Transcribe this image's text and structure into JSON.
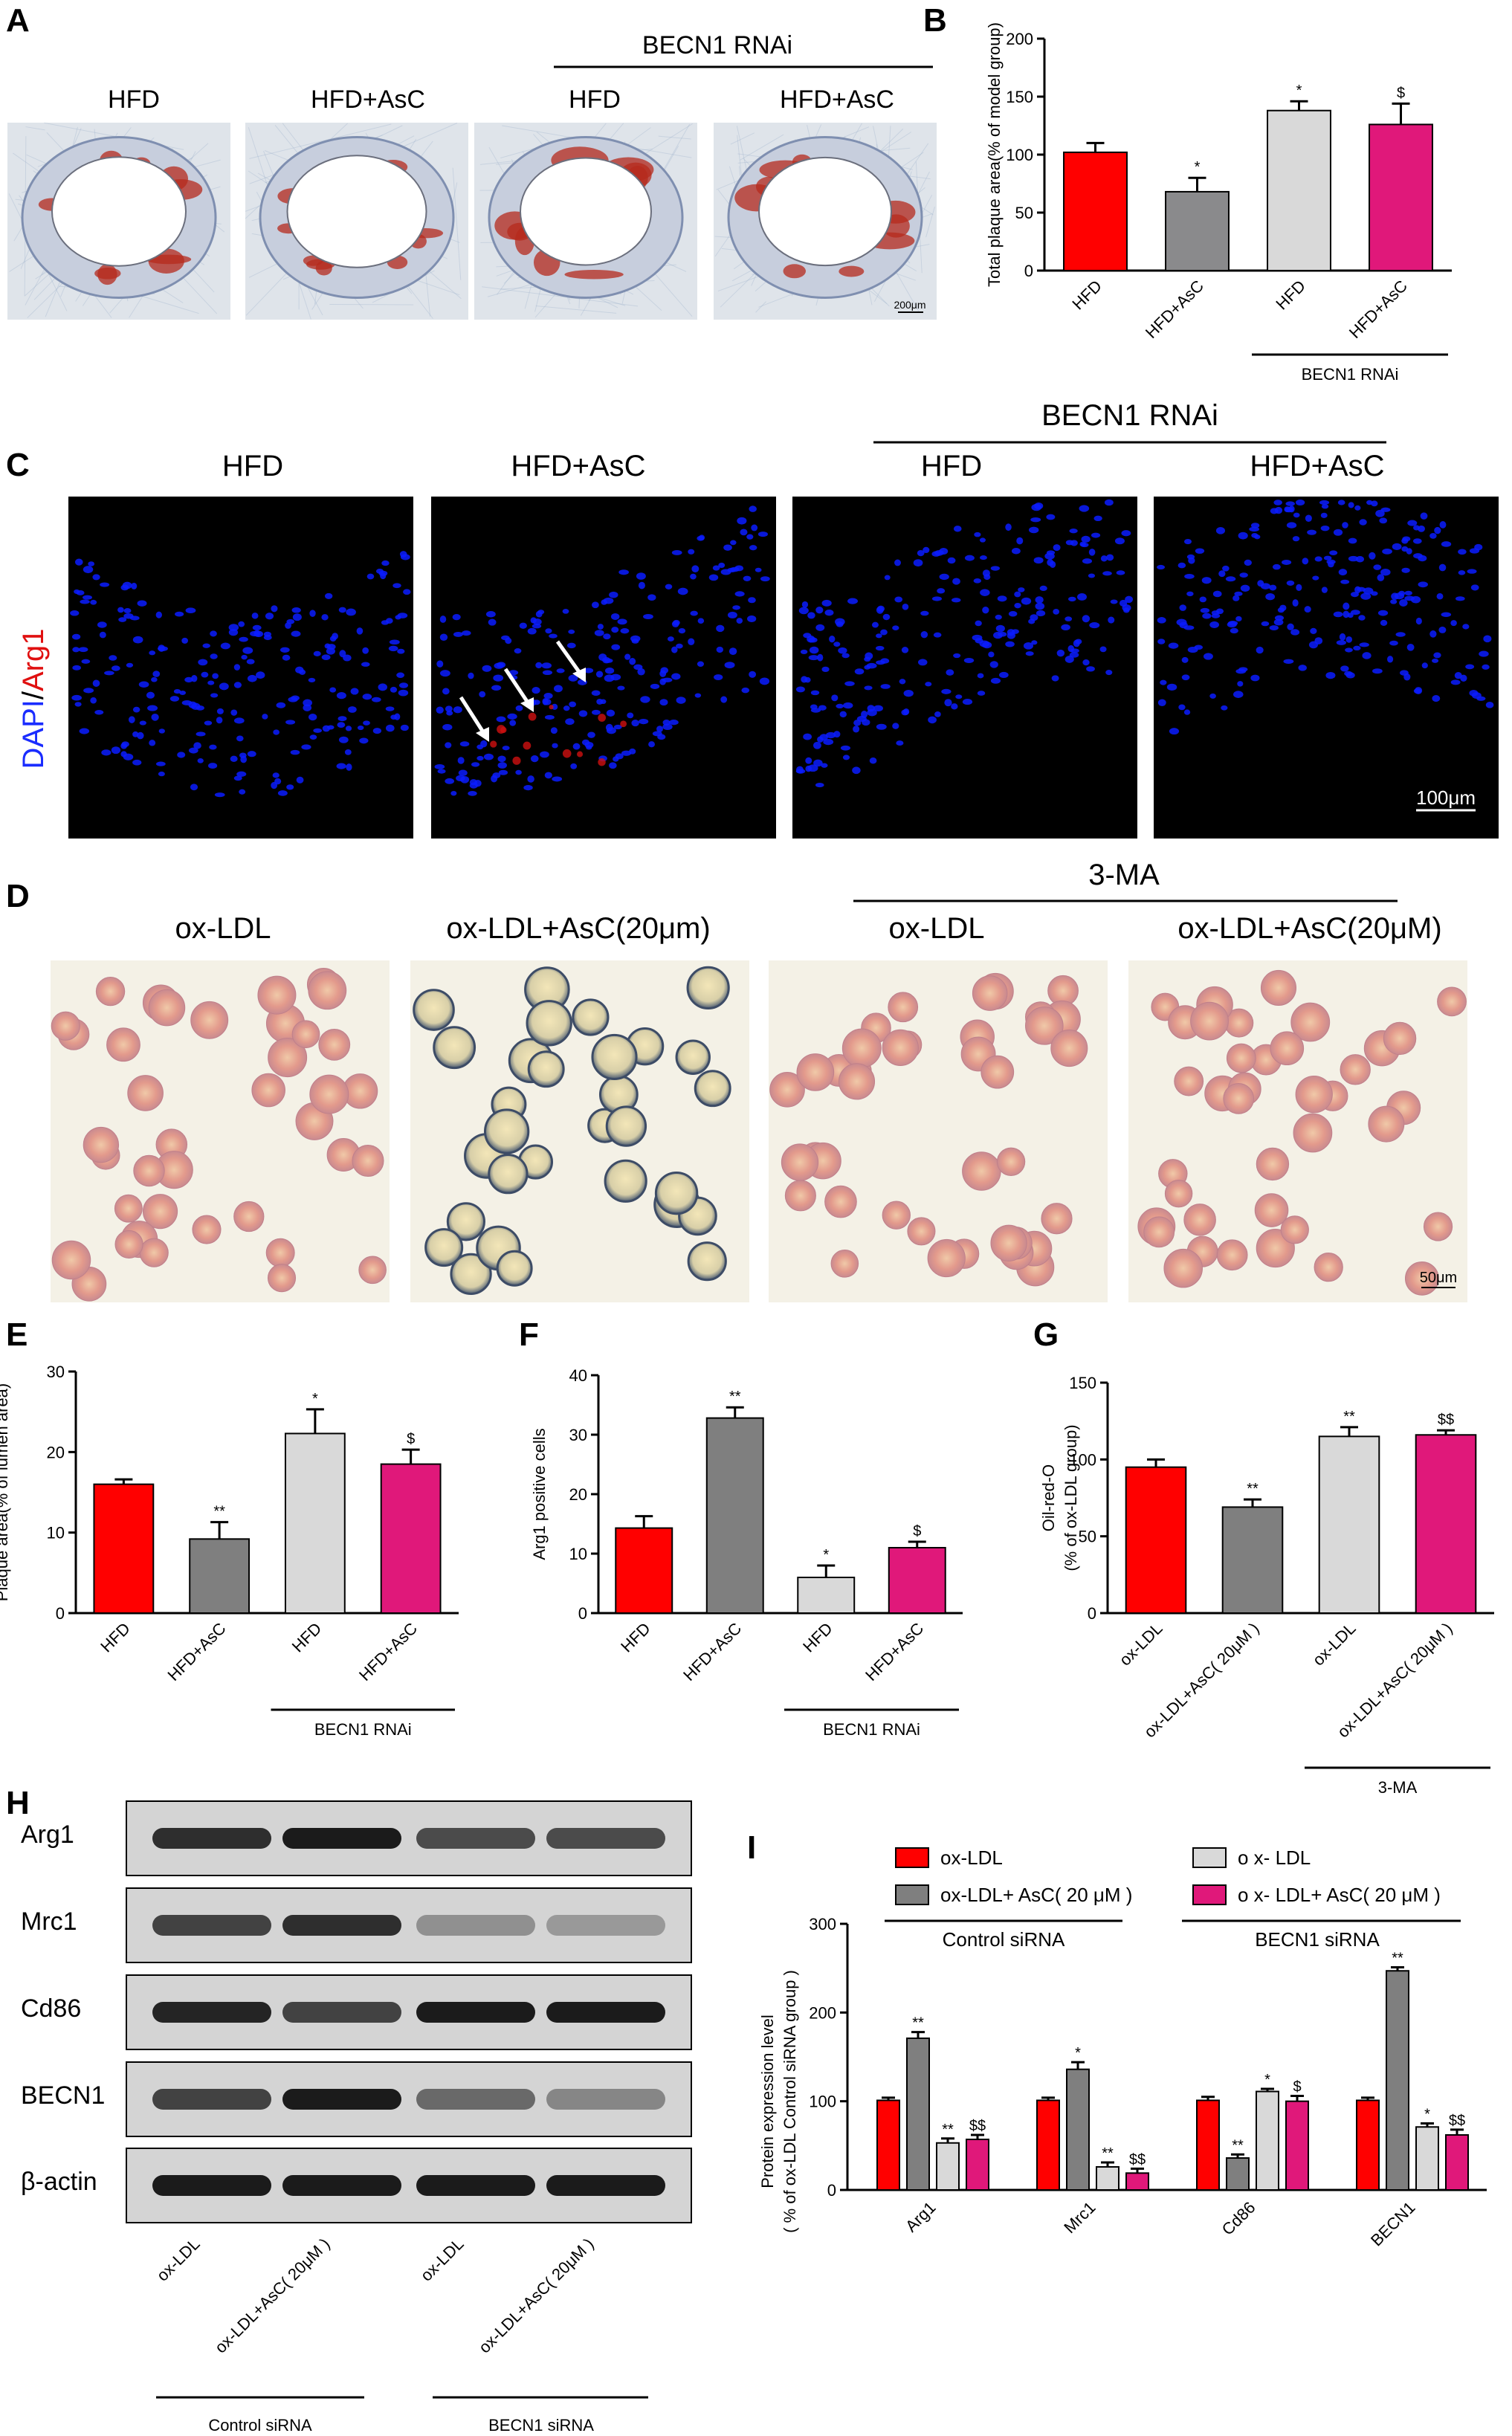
{
  "panels": {
    "A": "A",
    "B": "B",
    "C": "C",
    "D": "D",
    "E": "E",
    "F": "F",
    "G": "G",
    "H": "H",
    "I": "I"
  },
  "panel_A": {
    "headers": [
      "HFD",
      "HFD+AsC",
      "HFD",
      "HFD+AsC"
    ],
    "group": "BECN1 RNAi",
    "scalebar": "200μm"
  },
  "panel_C": {
    "headers": [
      "HFD",
      "HFD+AsC",
      "HFD",
      "HFD+AsC"
    ],
    "group": "BECN1 RNAi",
    "side_label_a": "DAPI",
    "side_label_sep": "/",
    "side_label_b": "Arg1",
    "scalebar": "100μm"
  },
  "panel_D": {
    "headers": [
      "ox-LDL",
      "ox-LDL+AsC(20μm)",
      "ox-LDL",
      "ox-LDL+AsC(20μM)"
    ],
    "group": "3-MA",
    "scalebar": "50μm"
  },
  "panel_H": {
    "rows": [
      "Arg1",
      "Mrc1",
      "Cd86",
      "BECN1",
      "β-actin"
    ],
    "lanes": [
      "ox-LDL",
      "ox-LDL+AsC( 20μM )",
      "ox-LDL",
      "ox-LDL+AsC( 20μM )"
    ],
    "groups": [
      "Control siRNA",
      "BECN1 siRNA"
    ]
  },
  "colors": {
    "red": "#ff0000",
    "gray": "#7f7f7f",
    "light": "#d9d9d9",
    "pink": "#e0187a",
    "arrow": "#ffffff",
    "dapi": "#0a1cff"
  },
  "chart_data": [
    {
      "id": "B",
      "type": "bar",
      "categories": [
        "HFD",
        "HFD+AsC",
        "HFD",
        "HFD+AsC"
      ],
      "values": [
        102,
        68,
        138,
        126
      ],
      "errors": [
        8,
        12,
        8,
        18
      ],
      "sig": [
        "",
        "*",
        "*",
        "$"
      ],
      "colors": [
        "#ff0000",
        "#8a8a8c",
        "#d9d9d9",
        "#e0187a"
      ],
      "ylabel": "Total plaque area(% of model group)",
      "ylim": [
        0,
        200
      ],
      "yticks": [
        0,
        50,
        100,
        150,
        200
      ],
      "group_label": "BECN1 RNAi",
      "group_cols": [
        2,
        3
      ]
    },
    {
      "id": "E",
      "type": "bar",
      "categories": [
        "HFD",
        "HFD+AsC",
        "HFD",
        "HFD+AsC"
      ],
      "values": [
        16,
        9.2,
        22.3,
        18.5
      ],
      "errors": [
        0.6,
        2.1,
        3,
        1.8
      ],
      "sig": [
        "",
        "**",
        "*",
        "$"
      ],
      "colors": [
        "#ff0000",
        "#7f7f7f",
        "#d9d9d9",
        "#e0187a"
      ],
      "ylabel": "Plaque area(% of lumen area)",
      "ylim": [
        0,
        30
      ],
      "yticks": [
        0,
        10,
        20,
        30
      ],
      "group_label": "BECN1 RNAi",
      "group_cols": [
        2,
        3
      ]
    },
    {
      "id": "F",
      "type": "bar",
      "categories": [
        "HFD",
        "HFD+AsC",
        "HFD",
        "HFD+AsC"
      ],
      "values": [
        14.3,
        32.8,
        6,
        11
      ],
      "errors": [
        2,
        1.8,
        2,
        1
      ],
      "sig": [
        "",
        "**",
        "*",
        "$"
      ],
      "colors": [
        "#ff0000",
        "#7f7f7f",
        "#d9d9d9",
        "#e0187a"
      ],
      "ylabel": "Arg1 positive cells",
      "ylim": [
        0,
        40
      ],
      "yticks": [
        0,
        10,
        20,
        30,
        40
      ],
      "group_label": "BECN1 RNAi",
      "group_cols": [
        2,
        3
      ]
    },
    {
      "id": "G",
      "type": "bar",
      "categories": [
        "ox-LDL",
        "ox-LDL+AsC( 20μM )",
        "ox-LDL",
        "ox-LDL+AsC( 20μM )"
      ],
      "values": [
        95,
        69,
        115,
        116
      ],
      "errors": [
        5,
        5,
        6,
        3
      ],
      "sig": [
        "",
        "**",
        "**",
        "$$"
      ],
      "colors": [
        "#ff0000",
        "#7f7f7f",
        "#d9d9d9",
        "#e0187a"
      ],
      "ylabel": "Oil-red-O",
      "ylabel2": "(% of ox-LDL group)",
      "ylim": [
        0,
        150
      ],
      "yticks": [
        0,
        50,
        100,
        150
      ],
      "group_label": "3-MA",
      "group_cols": [
        2,
        3
      ]
    },
    {
      "id": "I",
      "type": "bar",
      "categories": [
        "Arg1",
        "Mrc1",
        "Cd86",
        "BECN1"
      ],
      "series": [
        {
          "name": "ox-LDL",
          "values": [
            101,
            101,
            101,
            101
          ],
          "errors": [
            3,
            3,
            4,
            3
          ],
          "sig": [
            "",
            "",
            "",
            ""
          ]
        },
        {
          "name": "ox-LDL+ AsC( 20 μM )",
          "values": [
            171,
            136,
            36,
            247
          ],
          "errors": [
            7,
            8,
            4,
            4
          ],
          "sig": [
            "**",
            "*",
            "**",
            "**"
          ]
        },
        {
          "name": "o x- LDL",
          "values": [
            53,
            26,
            111,
            71
          ],
          "errors": [
            5,
            5,
            3,
            4
          ],
          "sig": [
            "**",
            "**",
            "*",
            "*"
          ]
        },
        {
          "name": "o x- LDL+ AsC( 20 μM )",
          "values": [
            57,
            19,
            100,
            62
          ],
          "errors": [
            5,
            5,
            6,
            6
          ],
          "sig": [
            "$$",
            "$$",
            "$",
            "$$"
          ]
        }
      ],
      "colors": [
        "#ff0000",
        "#7f7f7f",
        "#d9d9d9",
        "#e0187a"
      ],
      "ylabel": "Protein expression level",
      "ylabel2": "( % of ox-LDL Control siRNA group )",
      "ylim": [
        0,
        300
      ],
      "yticks": [
        0,
        100,
        200,
        300
      ],
      "legend_groups": [
        "Control siRNA",
        "BECN1 siRNA"
      ]
    }
  ]
}
